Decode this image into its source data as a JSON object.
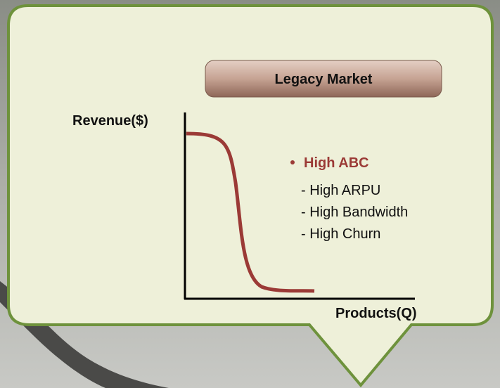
{
  "header": {
    "title": "Legacy Market"
  },
  "axes": {
    "y_label": "Revenue($)",
    "x_label": "Products(Q)"
  },
  "notes": {
    "heading": "High ABC",
    "items": [
      "- High ARPU",
      "- High Bandwidth",
      "- High Churn"
    ]
  }
}
